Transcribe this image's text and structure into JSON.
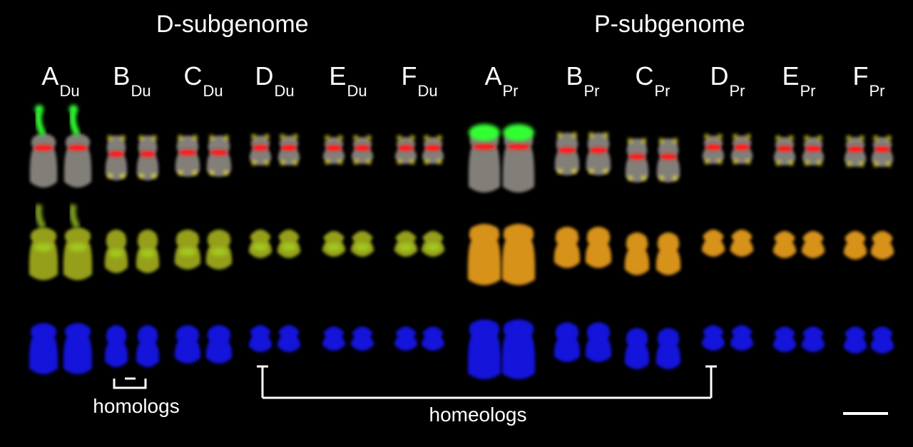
{
  "headings": {
    "left": "D-subgenome",
    "right": "P-subgenome"
  },
  "columns": [
    {
      "letter": "A",
      "sub": "Du"
    },
    {
      "letter": "B",
      "sub": "Du"
    },
    {
      "letter": "C",
      "sub": "Du"
    },
    {
      "letter": "D",
      "sub": "Du"
    },
    {
      "letter": "E",
      "sub": "Du"
    },
    {
      "letter": "F",
      "sub": "Du"
    },
    {
      "letter": "A",
      "sub": "Pr"
    },
    {
      "letter": "B",
      "sub": "Pr"
    },
    {
      "letter": "C",
      "sub": "Pr"
    },
    {
      "letter": "D",
      "sub": "Pr"
    },
    {
      "letter": "E",
      "sub": "Pr"
    },
    {
      "letter": "F",
      "sub": "Pr"
    }
  ],
  "annotations": {
    "homologs": "homologs",
    "homeologs": "homeologs"
  },
  "colors": {
    "background": "#000000",
    "grey_chromosome": "#8a8680",
    "red_band": "#ff2020",
    "yellow_signal": "#ffee30",
    "green_signal": "#30ff30",
    "merged_du": "#9ea81f",
    "merged_pr": "#e39a1a",
    "dapi_blue": "#1414e6"
  }
}
